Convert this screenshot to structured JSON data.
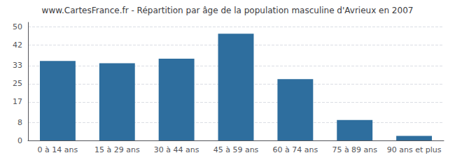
{
  "chart_data": {
    "type": "bar",
    "title": "www.CartesFrance.fr - Répartition par âge de la population masculine d'Avrieux en 2007",
    "categories": [
      "0 à 14 ans",
      "15 à 29 ans",
      "30 à 44 ans",
      "45 à 59 ans",
      "60 à 74 ans",
      "75 à 89 ans",
      "90 ans et plus"
    ],
    "values": [
      35,
      34,
      36,
      47,
      27,
      9,
      2
    ],
    "color": "#2E6E9E",
    "ylim": [
      0,
      52
    ],
    "yticks": [
      0,
      8,
      17,
      25,
      33,
      42,
      50
    ],
    "grid": true
  }
}
